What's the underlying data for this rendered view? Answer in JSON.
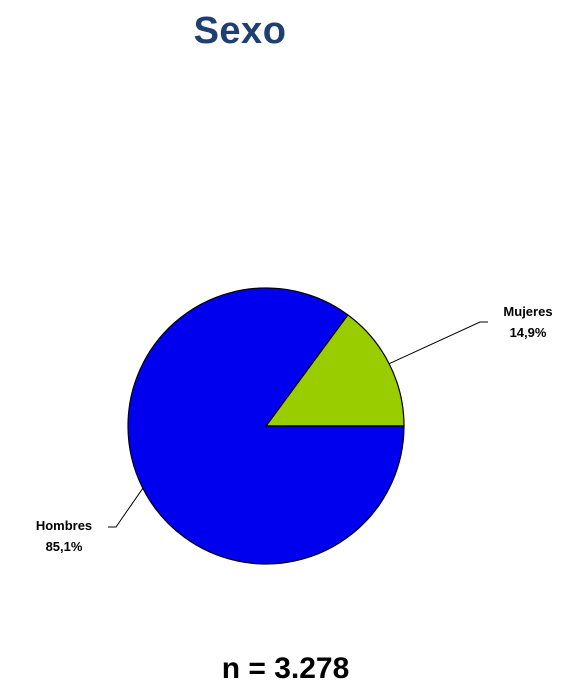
{
  "chart_data": {
    "type": "pie",
    "title": "Sexo",
    "slices": [
      {
        "label": "Mujeres",
        "value": 14.9,
        "value_label": "14,9%",
        "color": "#9acd00"
      },
      {
        "label": "Hombres",
        "value": 85.1,
        "value_label": "85,1%",
        "color": "#0000ee"
      }
    ],
    "legend": "none",
    "note": "n = 3.278"
  }
}
